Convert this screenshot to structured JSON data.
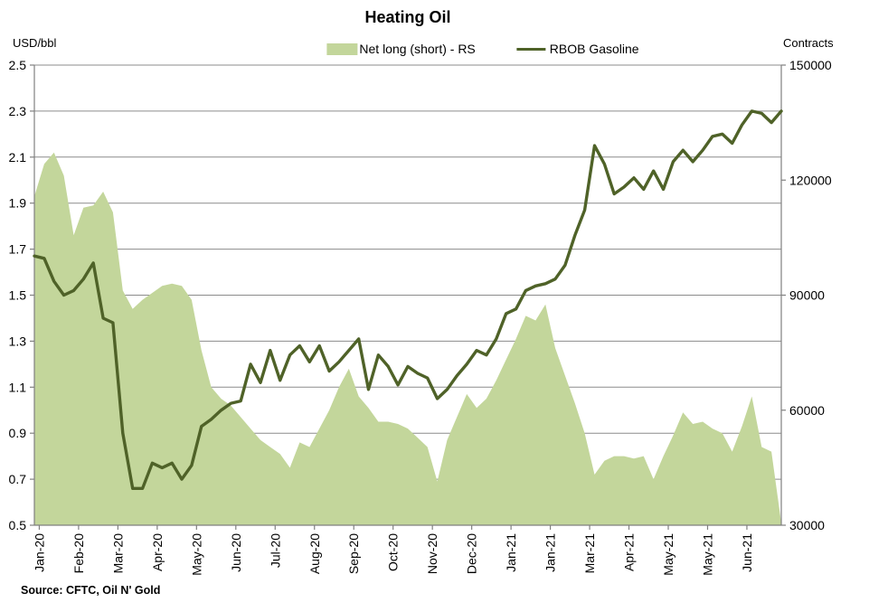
{
  "chart": {
    "title": "Heating Oil",
    "left_axis_unit": "USD/bbl",
    "right_axis_unit": "Contracts",
    "source": "Source: CFTC, Oil N' Gold",
    "legend": [
      {
        "label": "Net long (short) - RS",
        "swatch": "area-swatch",
        "color": "#c3d69b"
      },
      {
        "label": "RBOB Gasoline",
        "swatch": "line-swatch",
        "color": "#4f6228"
      }
    ]
  },
  "chart_data": {
    "type": "combo",
    "title": "Heating Oil",
    "grid": true,
    "legend_position": "top",
    "x_cadence": "weekly",
    "x_tick_labels": [
      "Jan-20",
      "Feb-20",
      "Mar-20",
      "Apr-20",
      "May-20",
      "Jun-20",
      "Jul-20",
      "Aug-20",
      "Sep-20",
      "Oct-20",
      "Nov-20",
      "Dec-20",
      "Jan-21",
      "Jan-21",
      "Mar-21",
      "Apr-21",
      "May-21",
      "May-21",
      "Jun-21"
    ],
    "left_axis": {
      "label": "USD/bbl",
      "range": [
        0.5,
        2.5
      ],
      "ticks": [
        2.5,
        2.3,
        2.1,
        1.9,
        1.7,
        1.5,
        1.3,
        1.1,
        0.9,
        0.7,
        0.5
      ]
    },
    "right_axis": {
      "label": "Contracts",
      "range": [
        30000,
        150000
      ],
      "ticks": [
        150000,
        120000,
        90000,
        60000,
        30000
      ]
    },
    "series": [
      {
        "name": "Net long (short) - RS",
        "type": "area",
        "axis": "right",
        "color": "#c3d69b",
        "values": [
          115800,
          124200,
          127200,
          121200,
          105600,
          112800,
          113400,
          117000,
          111600,
          91200,
          86400,
          88800,
          90600,
          92400,
          93000,
          92400,
          88800,
          75600,
          66000,
          63000,
          61200,
          58200,
          55200,
          52200,
          50400,
          48600,
          45000,
          51600,
          50400,
          55200,
          60000,
          66000,
          70800,
          63600,
          60600,
          57000,
          57000,
          56400,
          55200,
          52800,
          50400,
          41400,
          52200,
          58200,
          64200,
          60600,
          63000,
          67800,
          73200,
          78600,
          84600,
          83400,
          87600,
          76200,
          69000,
          61800,
          54000,
          43200,
          46800,
          48000,
          48000,
          47400,
          48000,
          42000,
          48000,
          53400,
          59400,
          56400,
          57000,
          55200,
          54000,
          49200,
          55800,
          63600,
          50400,
          49200,
          30600
        ]
      },
      {
        "name": "RBOB Gasoline",
        "type": "line",
        "axis": "left",
        "color": "#4f6228",
        "values": [
          1.67,
          1.66,
          1.56,
          1.5,
          1.52,
          1.57,
          1.64,
          1.4,
          1.38,
          0.9,
          0.66,
          0.66,
          0.77,
          0.75,
          0.77,
          0.7,
          0.76,
          0.93,
          0.96,
          1.0,
          1.03,
          1.04,
          1.2,
          1.12,
          1.26,
          1.13,
          1.24,
          1.28,
          1.21,
          1.28,
          1.17,
          1.21,
          1.26,
          1.31,
          1.09,
          1.24,
          1.19,
          1.11,
          1.19,
          1.16,
          1.14,
          1.05,
          1.09,
          1.15,
          1.2,
          1.26,
          1.24,
          1.31,
          1.42,
          1.44,
          1.52,
          1.54,
          1.55,
          1.57,
          1.63,
          1.76,
          1.87,
          2.15,
          2.07,
          1.94,
          1.97,
          2.01,
          1.96,
          2.04,
          1.96,
          2.08,
          2.13,
          2.08,
          2.13,
          2.19,
          2.2,
          2.16,
          2.24,
          2.3,
          2.29,
          2.25,
          2.3
        ]
      }
    ]
  }
}
